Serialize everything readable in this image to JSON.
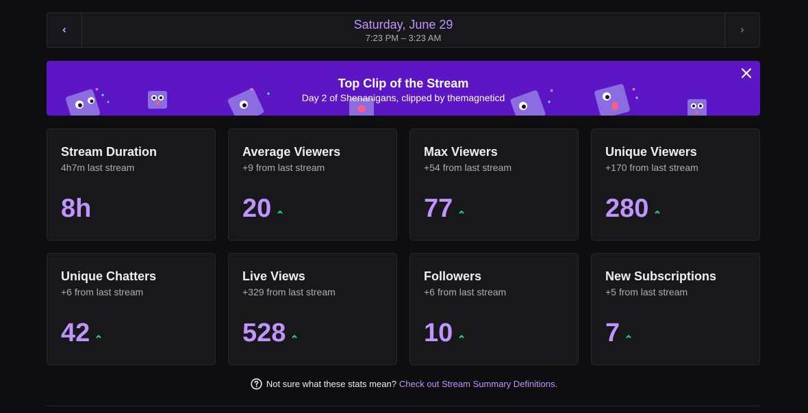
{
  "date_nav": {
    "title": "Saturday, June 29",
    "time_range": "7:23 PM – 3:23 AM",
    "prev_icon": "chevron-left-icon",
    "next_icon": "chevron-right-icon"
  },
  "banner": {
    "title": "Top Clip of the Stream",
    "subtitle": "Day 2 of Shenanigans, clipped by themagneticd",
    "close_icon": "close-icon",
    "background": "#5c16c5"
  },
  "stats": [
    {
      "title": "Stream Duration",
      "sub": "4h7m last stream",
      "value": "8h",
      "trend": "none"
    },
    {
      "title": "Average Viewers",
      "sub": "+9 from last stream",
      "value": "20",
      "trend": "up"
    },
    {
      "title": "Max Viewers",
      "sub": "+54 from last stream",
      "value": "77",
      "trend": "up"
    },
    {
      "title": "Unique Viewers",
      "sub": "+170 from last stream",
      "value": "280",
      "trend": "up"
    },
    {
      "title": "Unique Chatters",
      "sub": "+6 from last stream",
      "value": "42",
      "trend": "up"
    },
    {
      "title": "Live Views",
      "sub": "+329 from last stream",
      "value": "528",
      "trend": "up"
    },
    {
      "title": "Followers",
      "sub": "+6 from last stream",
      "value": "10",
      "trend": "up"
    },
    {
      "title": "New Subscriptions",
      "sub": "+5 from last stream",
      "value": "7",
      "trend": "up"
    }
  ],
  "footer": {
    "question": "Not sure what these stats mean?",
    "link": "Check out Stream Summary Definitions.",
    "help_icon": "help-circle-icon"
  },
  "colors": {
    "accent": "#bf94ff",
    "trend_up": "#00f593",
    "background": "#0e0e10",
    "card": "#18181b"
  }
}
